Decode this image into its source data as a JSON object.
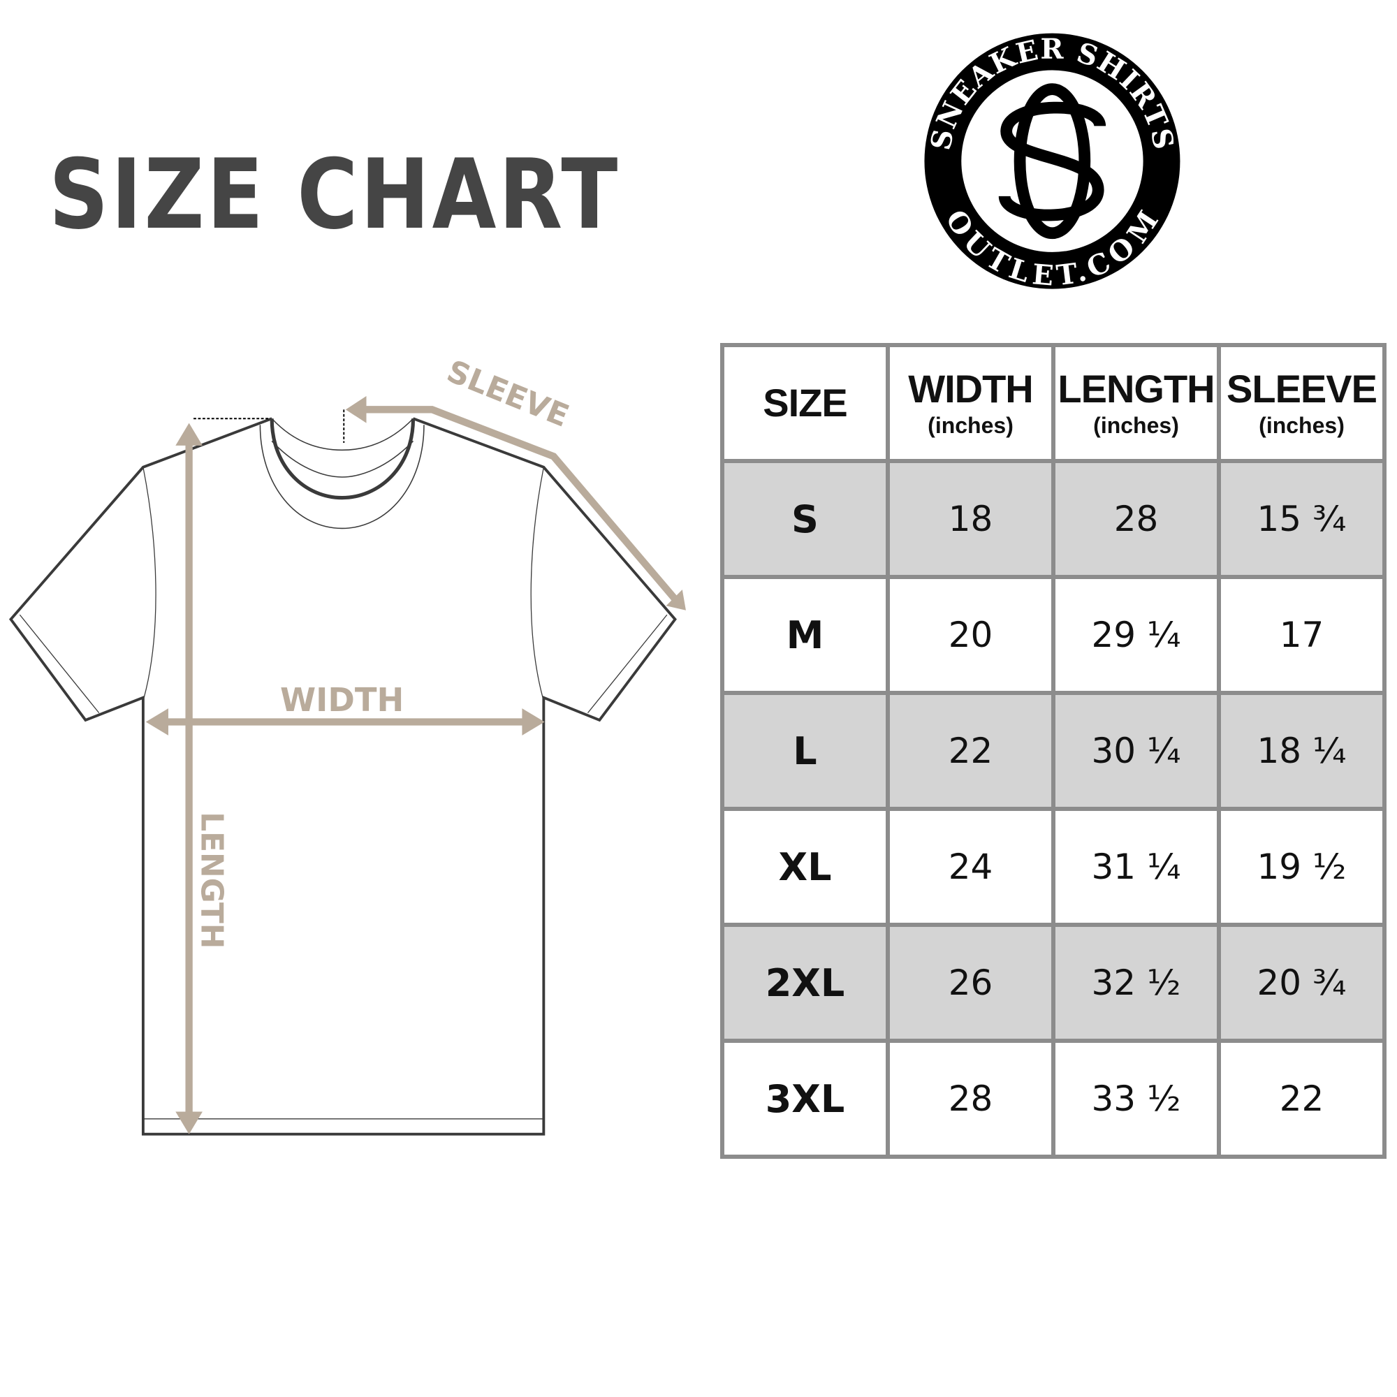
{
  "title": "SIZE CHART",
  "logo": {
    "top_text": "SNEAKER SHIRTS",
    "bottom_text": "OUTLET.COM",
    "monogram": "SO"
  },
  "diagram": {
    "sleeve_label": "SLEEVE",
    "width_label": "WIDTH",
    "length_label": "LENGTH",
    "arrow_color": "#b9ab9b",
    "outline_color": "#3a3a3a"
  },
  "table": {
    "headers": [
      {
        "label": "SIZE",
        "sub": ""
      },
      {
        "label": "WIDTH",
        "sub": "(inches)"
      },
      {
        "label": "LENGTH",
        "sub": "(inches)"
      },
      {
        "label": "SLEEVE",
        "sub": "(inches)"
      }
    ],
    "rows": [
      {
        "size": "S",
        "width": "18",
        "length": "28",
        "sleeve": "15 ¾"
      },
      {
        "size": "M",
        "width": "20",
        "length": "29 ¼",
        "sleeve": "17"
      },
      {
        "size": "L",
        "width": "22",
        "length": "30 ¼",
        "sleeve": "18 ¼"
      },
      {
        "size": "XL",
        "width": "24",
        "length": "31 ¼",
        "sleeve": "19 ½"
      },
      {
        "size": "2XL",
        "width": "26",
        "length": "32 ½",
        "sleeve": "20 ¾"
      },
      {
        "size": "3XL",
        "width": "28",
        "length": "33 ½",
        "sleeve": "22"
      }
    ],
    "shaded_color": "#d4d4d4",
    "border_color": "#8c8c8c"
  }
}
